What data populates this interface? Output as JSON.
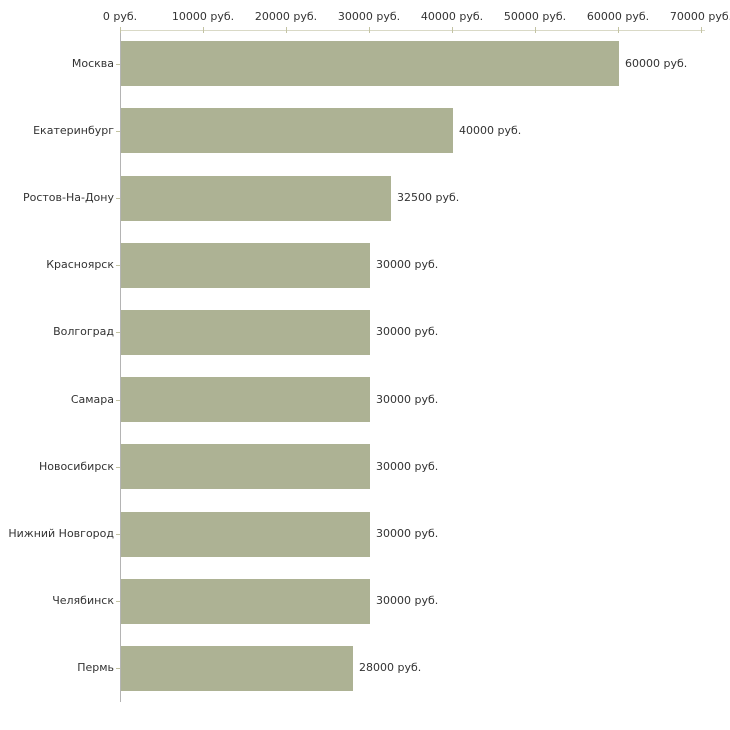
{
  "chart_data": {
    "type": "bar",
    "orientation": "horizontal",
    "title": "",
    "xlabel": "",
    "ylabel": "",
    "categories": [
      "Москва",
      "Екатеринбург",
      "Ростов-На-Дону",
      "Красноярск",
      "Волгоград",
      "Самара",
      "Новосибирск",
      "Нижний Новгород",
      "Челябинск",
      "Пермь"
    ],
    "values": [
      60000,
      40000,
      32500,
      30000,
      30000,
      30000,
      30000,
      30000,
      30000,
      28000
    ],
    "value_labels": [
      "60000 руб.",
      "40000 руб.",
      "32500 руб.",
      "30000 руб.",
      "30000 руб.",
      "30000 руб.",
      "30000 руб.",
      "30000 руб.",
      "30000 руб.",
      "28000 руб."
    ],
    "x_axis": {
      "position": "top",
      "min": 0,
      "max": 70000,
      "ticks": [
        0,
        10000,
        20000,
        30000,
        40000,
        50000,
        60000,
        70000
      ],
      "tick_labels": [
        "0 руб.",
        "10000 руб.",
        "20000 руб.",
        "30000 руб.",
        "40000 руб.",
        "50000 руб.",
        "60000 руб.",
        "70000 руб."
      ]
    },
    "grid": false,
    "legend": false,
    "colors": {
      "bar_fill": "#adb294",
      "axis_line": "#d9d9c6",
      "axis_tick": "#c3c3a3",
      "y_axis_line": "#b4b4b4",
      "text": "#333333"
    }
  }
}
